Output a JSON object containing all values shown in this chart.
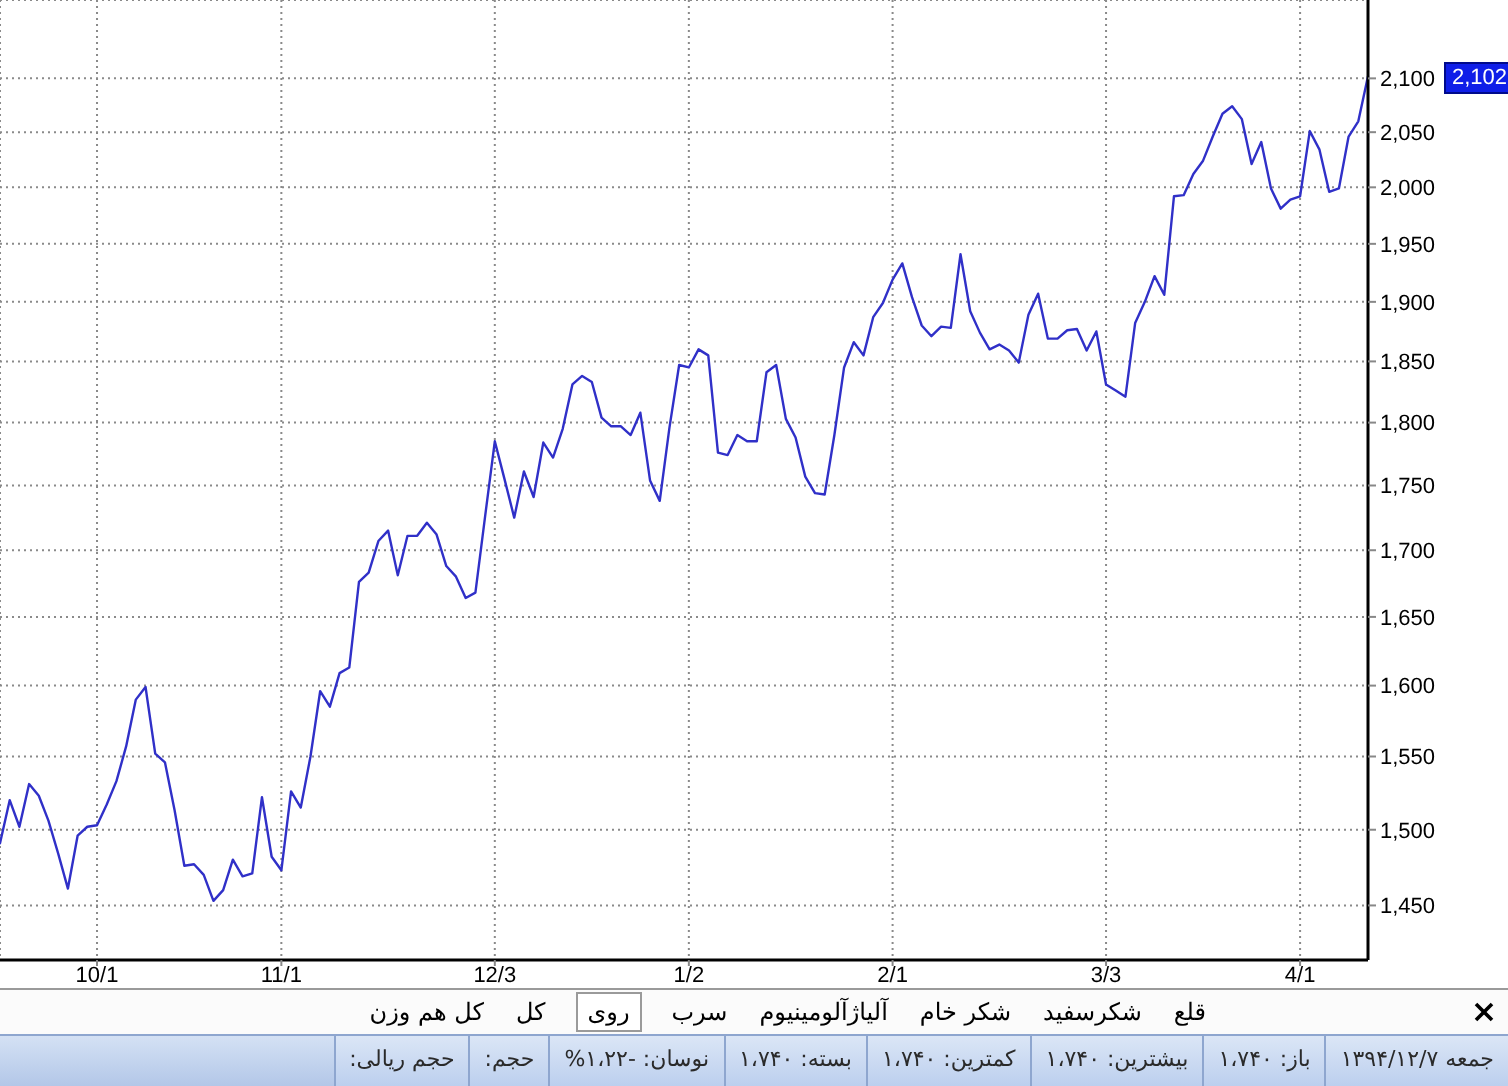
{
  "chart_data": {
    "type": "line",
    "categories": [
      null,
      null,
      null,
      null,
      null,
      null,
      null,
      null,
      null,
      null,
      "10/1",
      null,
      null,
      null,
      null,
      null,
      null,
      null,
      null,
      null,
      null,
      null,
      null,
      null,
      null,
      null,
      null,
      null,
      null,
      "11/1",
      null,
      null,
      null,
      null,
      null,
      null,
      null,
      null,
      null,
      null,
      null,
      null,
      null,
      null,
      null,
      null,
      null,
      null,
      null,
      null,
      null,
      "12/3",
      null,
      null,
      null,
      null,
      null,
      null,
      null,
      null,
      null,
      null,
      null,
      null,
      null,
      null,
      null,
      null,
      null,
      null,
      null,
      "1/2",
      null,
      null,
      null,
      null,
      null,
      null,
      null,
      null,
      null,
      null,
      null,
      null,
      null,
      null,
      null,
      null,
      null,
      null,
      null,
      null,
      "2/1",
      null,
      null,
      null,
      null,
      null,
      null,
      null,
      null,
      null,
      null,
      null,
      null,
      null,
      null,
      null,
      null,
      null,
      null,
      null,
      null,
      null,
      "3/3",
      null,
      null,
      null,
      null,
      null,
      null,
      null,
      null,
      null,
      null,
      null,
      null,
      null,
      null,
      null,
      null,
      null,
      null,
      null,
      "4/1",
      null,
      null,
      null,
      null,
      null,
      null,
      null
    ],
    "values": [
      1491,
      1520,
      1502,
      1531,
      1523,
      1506,
      1484,
      1461,
      1496,
      1502,
      1503,
      1517,
      1533,
      1557,
      1590,
      1599,
      1552,
      1546,
      1513,
      1476,
      1477,
      1470,
      1453,
      1460,
      1480,
      1469,
      1471,
      1522,
      1482,
      1473,
      1526,
      1515,
      1550,
      1596,
      1585,
      1609,
      1613,
      1676,
      1683,
      1707,
      1715,
      1681,
      1711,
      1711,
      1721,
      1712,
      1688,
      1680,
      1664,
      1668,
      1726,
      1785,
      1755,
      1725,
      1761,
      1741,
      1784,
      1772,
      1795,
      1831,
      1838,
      1833,
      1804,
      1797,
      1797,
      1790,
      1808,
      1754,
      1738,
      1796,
      1847,
      1845,
      1860,
      1855,
      1776,
      1774,
      1790,
      1785,
      1785,
      1841,
      1847,
      1803,
      1788,
      1757,
      1744,
      1743,
      1790,
      1845,
      1866,
      1855,
      1887,
      1899,
      1919,
      1933,
      1904,
      1880,
      1871,
      1879,
      1878,
      1941,
      1892,
      1874,
      1860,
      1864,
      1859,
      1849,
      1889,
      1907,
      1869,
      1869,
      1876,
      1877,
      1859,
      1875,
      1831,
      1826,
      1821,
      1882,
      1900,
      1922,
      1906,
      1992,
      1993,
      2012,
      2024,
      2046,
      2067,
      2074,
      2062,
      2021,
      2041,
      1999,
      1981,
      1989,
      1992,
      2051,
      2034,
      1996,
      1999,
      2046,
      2060,
      2102
    ],
    "color": "#3030c8",
    "log": true,
    "ylim": [
      1415,
      2175
    ],
    "yticks": [
      {
        "value": 1450,
        "label": "1,450"
      },
      {
        "value": 1500,
        "label": "1,500"
      },
      {
        "value": 1550,
        "label": "1,550"
      },
      {
        "value": 1600,
        "label": "1,600"
      },
      {
        "value": 1650,
        "label": "1,650"
      },
      {
        "value": 1700,
        "label": "1,700"
      },
      {
        "value": 1750,
        "label": "1,750"
      },
      {
        "value": 1800,
        "label": "1,800"
      },
      {
        "value": 1850,
        "label": "1,850"
      },
      {
        "value": 1900,
        "label": "1,900"
      },
      {
        "value": 1950,
        "label": "1,950"
      },
      {
        "value": 2000,
        "label": "2,000"
      },
      {
        "value": 2050,
        "label": "2,050"
      },
      {
        "value": 2100,
        "label": "2,100"
      }
    ],
    "grid": true,
    "annotations": [
      "2,102",
      "قلع",
      "شکرسفید",
      "شکر خام",
      "آلیاژآلومینیوم",
      "سرب",
      "روی",
      "کل",
      "کل هم وزن",
      "جمعه ۱۳۹۴/۱۲/۷",
      "باز: ۱،۷۴۰",
      "بیشترین: ۱،۷۴۰",
      "کمترین: ۱،۷۴۰",
      "بسته: ۱،۷۴۰",
      "نوسان: -۱،۲۲%",
      "حجم:",
      "حجم ریالی:"
    ]
  }
}
